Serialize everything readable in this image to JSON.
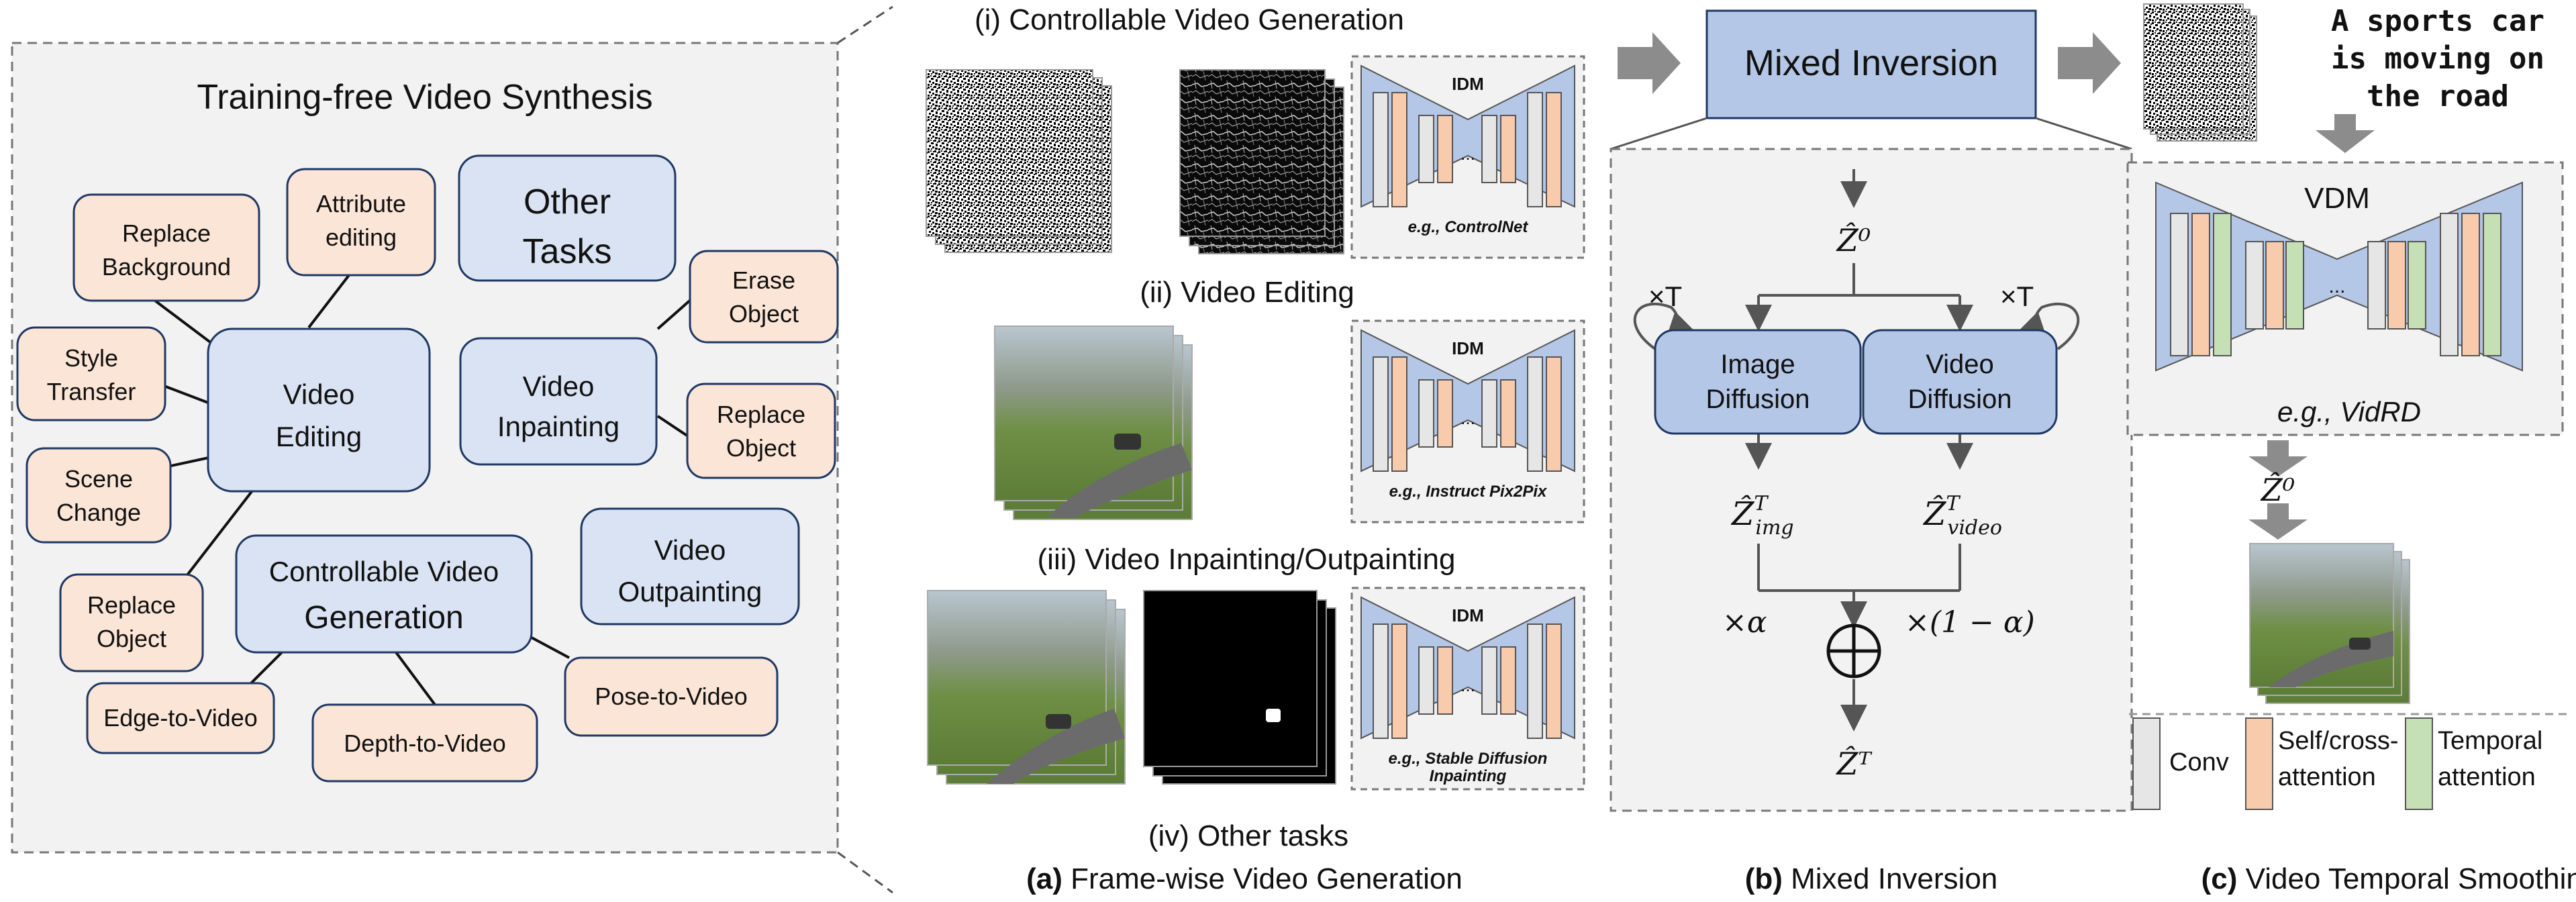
{
  "left_panel": {
    "title": "Training-free Video Synthesis",
    "category_nodes": [
      "Video Editing",
      "Video Inpainting",
      "Other Tasks",
      "Controllable Video Generation",
      "Video Outpainting"
    ],
    "editing_leaves": [
      "Replace Background",
      "Attribute editing",
      "Style Transfer",
      "Scene Change",
      "Replace Object"
    ],
    "inpainting_leaves": [
      "Erase Object",
      "Replace Object"
    ],
    "generation_leaves": [
      "Edge-to-Video",
      "Depth-to-Video",
      "Pose-to-Video"
    ]
  },
  "section_a": {
    "row_titles": [
      "(i) Controllable Video Generation",
      "(ii) Video Editing",
      "(iii) Video Inpainting/Outpainting",
      "(iv) Other tasks"
    ],
    "idm_label": "IDM",
    "dots": "...",
    "idm_examples": [
      "e.g., ControlNet",
      "e.g., Instruct Pix2Pix",
      "e.g., Stable Diffusion",
      "Inpainting"
    ],
    "caption_bold": "(a)",
    "caption_text": " Frame-wise Video Generation"
  },
  "section_b": {
    "header": "Mixed Inversion",
    "z0": "Ẑ⁰",
    "times_t_left": "×T",
    "times_t_right": "×T",
    "image_diffusion": [
      "Image",
      "Diffusion"
    ],
    "video_diffusion": [
      "Video",
      "Diffusion"
    ],
    "z_img_main": "Ẑ",
    "z_img_sup": "T",
    "z_img_sub": "img",
    "z_video_main": "Ẑ",
    "z_video_sup": "T",
    "z_video_sub": "video",
    "alpha_left": "×α",
    "alpha_right": "×(1 − α)",
    "zT": "Ẑᵀ",
    "caption_bold": "(b)",
    "caption_text": " Mixed Inversion"
  },
  "section_c": {
    "prompt_lines": [
      "A sports car",
      "is moving on",
      "the road"
    ],
    "vdm_label": "VDM",
    "dots": "...",
    "vdm_example": "e.g., VidRD",
    "z0": "Ẑ⁰",
    "legend": [
      "Conv",
      "Self/cross-",
      "attention",
      "Temporal",
      "attention"
    ],
    "caption_bold": "(c)",
    "caption_text": " Video Temporal Smoothing"
  },
  "colors": {
    "panel_bg": "#f2f2f2",
    "node_blue": "#dae3f3",
    "node_orange": "#fbe5d6",
    "module_blue": "#b4c7e7",
    "conv_gray": "#e7e6e6",
    "attention_orange": "#f8cbad",
    "temporal_green": "#c5e0b4",
    "arrow_gray": "#7f7f7f"
  }
}
